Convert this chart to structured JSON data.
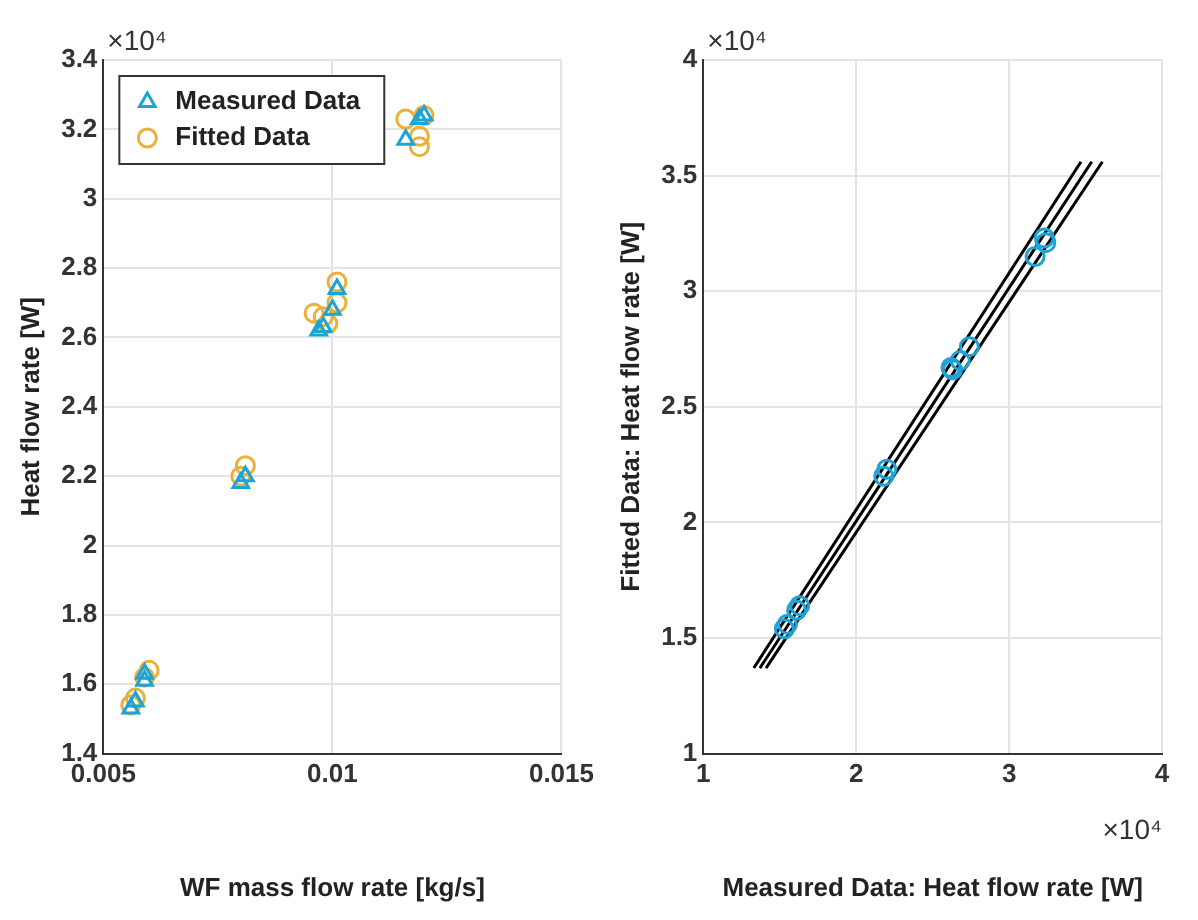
{
  "chart_data": [
    {
      "type": "scatter",
      "xlabel": "WF mass flow rate [kg/s]",
      "ylabel": "Heat flow rate [W]",
      "annotations": [
        "×10⁴"
      ],
      "xlim": [
        0.005,
        0.015
      ],
      "xticks": [
        0.005,
        0.01,
        0.015
      ],
      "ylim": [
        1.4,
        3.4
      ],
      "yticks": [
        1.4,
        1.6,
        1.8,
        2,
        2.2,
        2.4,
        2.6,
        2.8,
        3,
        3.2,
        3.4
      ],
      "grid": true,
      "legend": "top left",
      "series": [
        {
          "name": "Measured Data",
          "color": "#1ea3d6",
          "marker": "triangle",
          "x": [
            0.0056,
            0.0057,
            0.0059,
            0.0059,
            0.008,
            0.0081,
            0.0097,
            0.0098,
            0.01,
            0.0101,
            0.0116,
            0.0119,
            0.012
          ],
          "values": [
            1.53,
            1.55,
            1.61,
            1.63,
            2.18,
            2.2,
            2.62,
            2.63,
            2.68,
            2.74,
            3.17,
            3.23,
            3.24
          ]
        },
        {
          "name": "Fitted Data",
          "color": "#e8b23a",
          "marker": "circle",
          "x": [
            0.0056,
            0.0057,
            0.0059,
            0.006,
            0.008,
            0.0081,
            0.0096,
            0.0098,
            0.0099,
            0.0101,
            0.0101,
            0.0116,
            0.0119,
            0.0119,
            0.012
          ],
          "values": [
            1.54,
            1.56,
            1.62,
            1.64,
            2.2,
            2.23,
            2.67,
            2.66,
            2.64,
            2.7,
            2.76,
            3.23,
            3.15,
            3.18,
            3.24
          ]
        }
      ]
    },
    {
      "type": "scatter",
      "xlabel": "Measured Data: Heat flow rate [W]",
      "ylabel": "Fitted Data: Heat flow rate [W]",
      "annotations": [
        "×10⁴",
        "×10⁴"
      ],
      "xlim": [
        1,
        4
      ],
      "xticks": [
        1,
        2,
        3,
        4
      ],
      "ylim": [
        1,
        4
      ],
      "yticks": [
        1,
        1.5,
        2,
        2.5,
        3,
        3.5,
        4
      ],
      "grid": true,
      "series": [
        {
          "color": "#1ea3d6",
          "marker": "circle",
          "x": [
            1.53,
            1.55,
            1.61,
            1.63,
            2.18,
            2.2,
            2.62,
            2.63,
            2.68,
            2.74,
            3.17,
            3.23,
            3.24
          ],
          "values": [
            1.54,
            1.56,
            1.62,
            1.64,
            2.2,
            2.23,
            2.67,
            2.66,
            2.7,
            2.76,
            3.15,
            3.23,
            3.21
          ]
        },
        {
          "type": "line",
          "color": "#000000",
          "marker": "none",
          "x": [
            1.33,
            3.47
          ],
          "values": [
            1.37,
            3.56
          ]
        },
        {
          "type": "line",
          "color": "#000000",
          "marker": "none",
          "x": [
            1.37,
            3.54
          ],
          "values": [
            1.37,
            3.56
          ]
        },
        {
          "type": "line",
          "color": "#000000",
          "marker": "none",
          "x": [
            1.41,
            3.61
          ],
          "values": [
            1.37,
            3.56
          ]
        }
      ]
    }
  ]
}
